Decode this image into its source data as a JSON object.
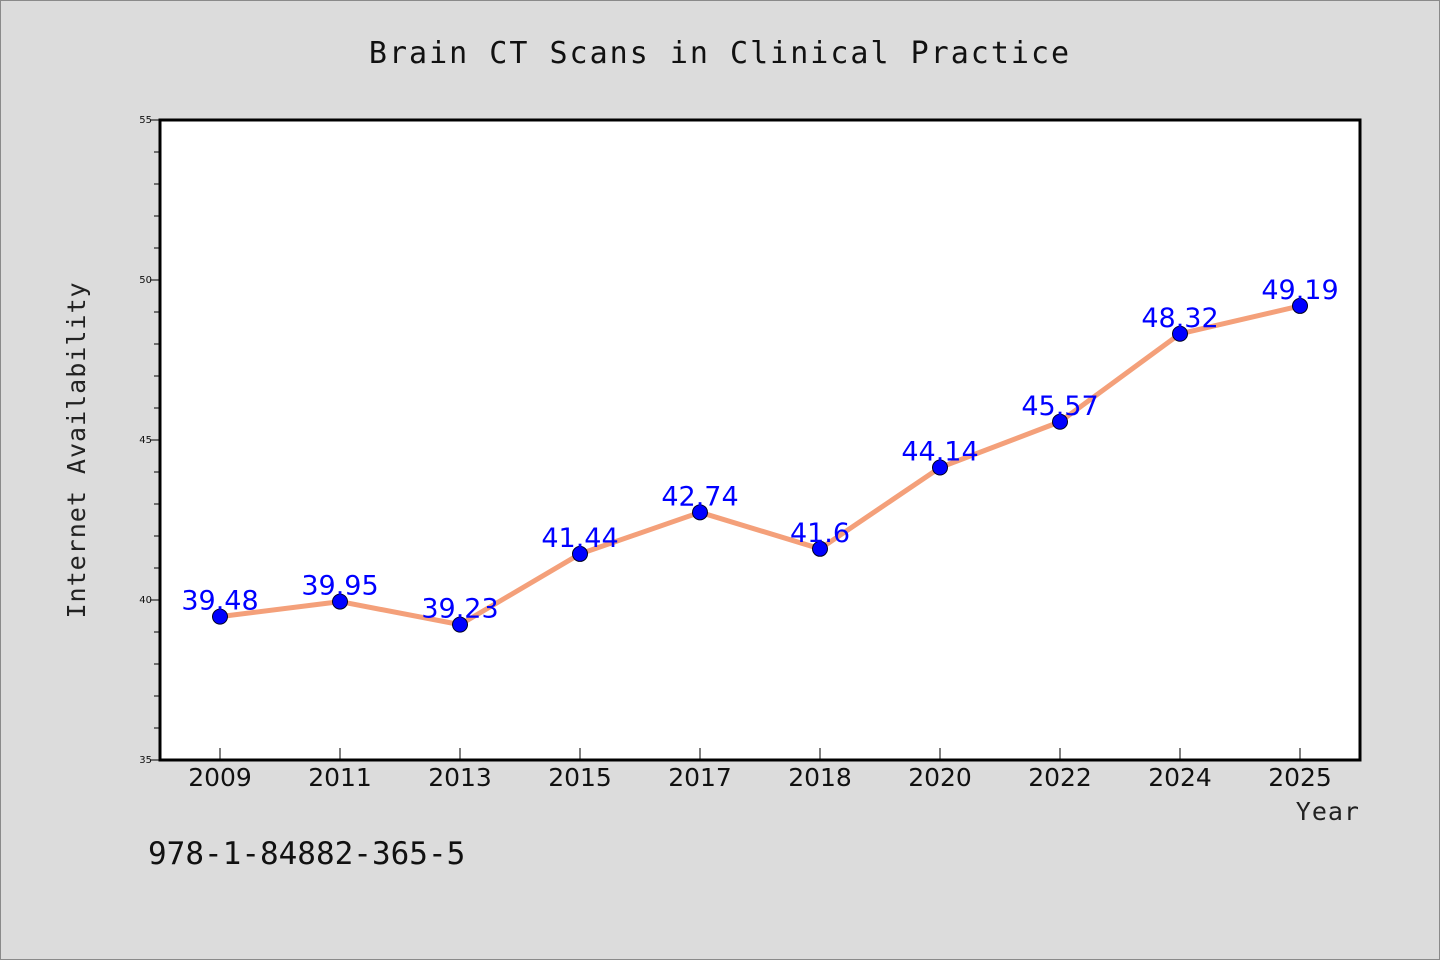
{
  "colors": {
    "background": "#dcdcdc",
    "plot_background": "#ffffff",
    "line": "#f4a07a",
    "marker": "#0000ff",
    "label": "#0000ff"
  },
  "footer_code": "978-1-84882-365-5",
  "chart_data": {
    "type": "line",
    "title": "Brain CT Scans in Clinical Practice",
    "xlabel": "Year",
    "ylabel": "Internet Availability",
    "categories": [
      "2009",
      "2011",
      "2013",
      "2015",
      "2017",
      "2018",
      "2020",
      "2022",
      "2024",
      "2025"
    ],
    "values": [
      39.48,
      39.95,
      39.23,
      41.44,
      42.74,
      41.6,
      44.14,
      45.57,
      48.32,
      49.19
    ],
    "data_labels": [
      "39.48",
      "39.95",
      "39.23",
      "41.44",
      "42.74",
      "41.6",
      "44.14",
      "45.57",
      "48.32",
      "49.19"
    ],
    "ylim": [
      35,
      55
    ],
    "y_ticks": [
      35,
      40,
      45,
      50,
      55
    ],
    "grid": false,
    "legend": "none",
    "marker": "circle"
  }
}
